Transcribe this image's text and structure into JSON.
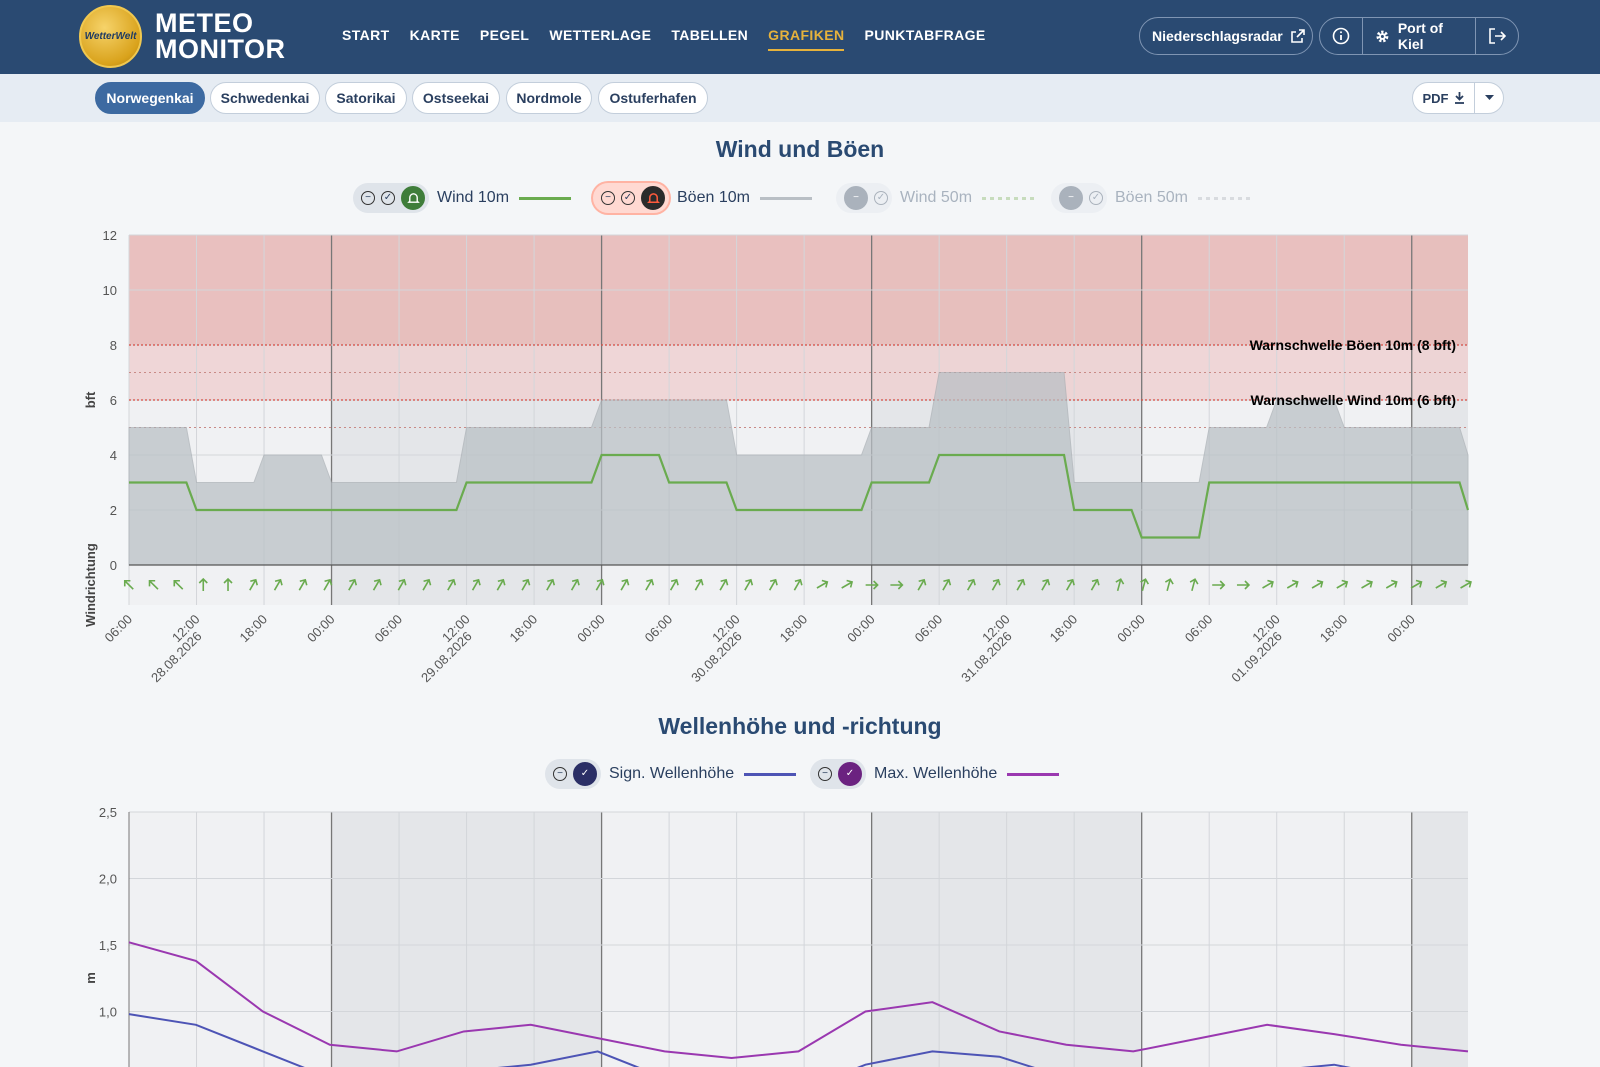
{
  "header": {
    "logo_badge": "WetterWelt",
    "logo_line1": "METEO",
    "logo_line2": "MONITOR",
    "nav": [
      "START",
      "KARTE",
      "PEGEL",
      "WETTERLAGE",
      "TABELLEN",
      "GRAFIKEN",
      "PUNKTABFRAGE"
    ],
    "active_nav": "GRAFIKEN",
    "radar_label": "Niederschlagsradar",
    "location_label": "Port of Kiel"
  },
  "locations": [
    "Norwegenkai",
    "Schwedenkai",
    "Satorikai",
    "Ostseekai",
    "Nordmole",
    "Ostuferhafen"
  ],
  "active_location": "Norwegenkai",
  "pdf_label": "PDF",
  "colors": {
    "header": "#2a4a72",
    "accent": "#e6b23c",
    "wind10": "#6aab4f",
    "boeen10": "#b9bfc5",
    "sign_wave": "#4d54b5",
    "max_wave": "#9a38b0",
    "warn_zone": "#e7b7b5"
  },
  "wind_chart": {
    "title": "Wind und Böen",
    "legend": [
      {
        "label": "Wind 10m",
        "state": "active"
      },
      {
        "label": "Böen 10m",
        "state": "warn"
      },
      {
        "label": "Wind 50m",
        "state": "disabled"
      },
      {
        "label": "Böen 50m",
        "state": "disabled"
      }
    ],
    "ylabel": "bft",
    "dir_label": "Windrichtung",
    "yticks": [
      "0",
      "2",
      "4",
      "6",
      "8",
      "10",
      "12"
    ],
    "warn_boeen": "Warnschwelle Böen 10m (8 bft)",
    "warn_wind": "Warnschwelle Wind 10m (6 bft)",
    "xticks": [
      "06:00",
      "12:00",
      "18:00",
      "00:00",
      "06:00",
      "12:00",
      "18:00",
      "00:00",
      "06:00",
      "12:00",
      "18:00",
      "00:00",
      "06:00",
      "12:00",
      "18:00",
      "00:00",
      "06:00",
      "12:00",
      "18:00",
      "00:00"
    ],
    "dates": [
      "28.08.2026",
      "29.08.2026",
      "30.08.2026",
      "31.08.2026",
      "01.09.2026"
    ]
  },
  "wave_chart": {
    "title": "Wellenhöhe und -richtung",
    "legend": [
      {
        "label": "Sign. Wellenhöhe"
      },
      {
        "label": "Max. Wellenhöhe"
      }
    ],
    "ylabel": "m",
    "yticks": [
      "1,0",
      "1,5",
      "2,0",
      "2,5"
    ]
  },
  "chart_data": [
    {
      "type": "area",
      "title": "Wind und Böen",
      "ylabel": "bft",
      "ylim": [
        0,
        12
      ],
      "x_hours_from_start": [
        0,
        6,
        12,
        18,
        24,
        30,
        36,
        42,
        48,
        54,
        60,
        66,
        72,
        78,
        84,
        90,
        96,
        102,
        108,
        114,
        119
      ],
      "series": [
        {
          "name": "Wind 10m",
          "values": [
            3,
            2,
            2,
            2,
            2,
            3,
            3,
            4,
            3,
            2,
            2,
            3,
            4,
            4,
            2,
            1,
            3,
            3,
            3,
            3,
            2
          ]
        },
        {
          "name": "Böen 10m",
          "values": [
            5,
            3,
            4,
            3,
            3,
            5,
            5,
            6,
            6,
            4,
            4,
            5,
            7,
            7,
            3,
            3,
            5,
            6,
            5,
            5,
            4
          ]
        }
      ],
      "thresholds": [
        6,
        8
      ]
    },
    {
      "type": "line",
      "title": "Wellenhöhe und -richtung",
      "ylabel": "m",
      "series": [
        {
          "name": "Sign. Wellenhöhe",
          "values": [
            0.98,
            0.9,
            0.7,
            0.5,
            0.4,
            0.55,
            0.6,
            0.7,
            0.5,
            0.4,
            0.4,
            0.6,
            0.7,
            0.66,
            0.5,
            0.4,
            0.5,
            0.55,
            0.6,
            0.5,
            0.4
          ]
        },
        {
          "name": "Max. Wellenhöhe",
          "values": [
            1.52,
            1.38,
            1.0,
            0.75,
            0.7,
            0.85,
            0.9,
            0.8,
            0.7,
            0.65,
            0.7,
            1.0,
            1.07,
            0.85,
            0.75,
            0.7,
            0.8,
            0.9,
            0.83,
            0.75,
            0.7
          ]
        }
      ]
    }
  ]
}
